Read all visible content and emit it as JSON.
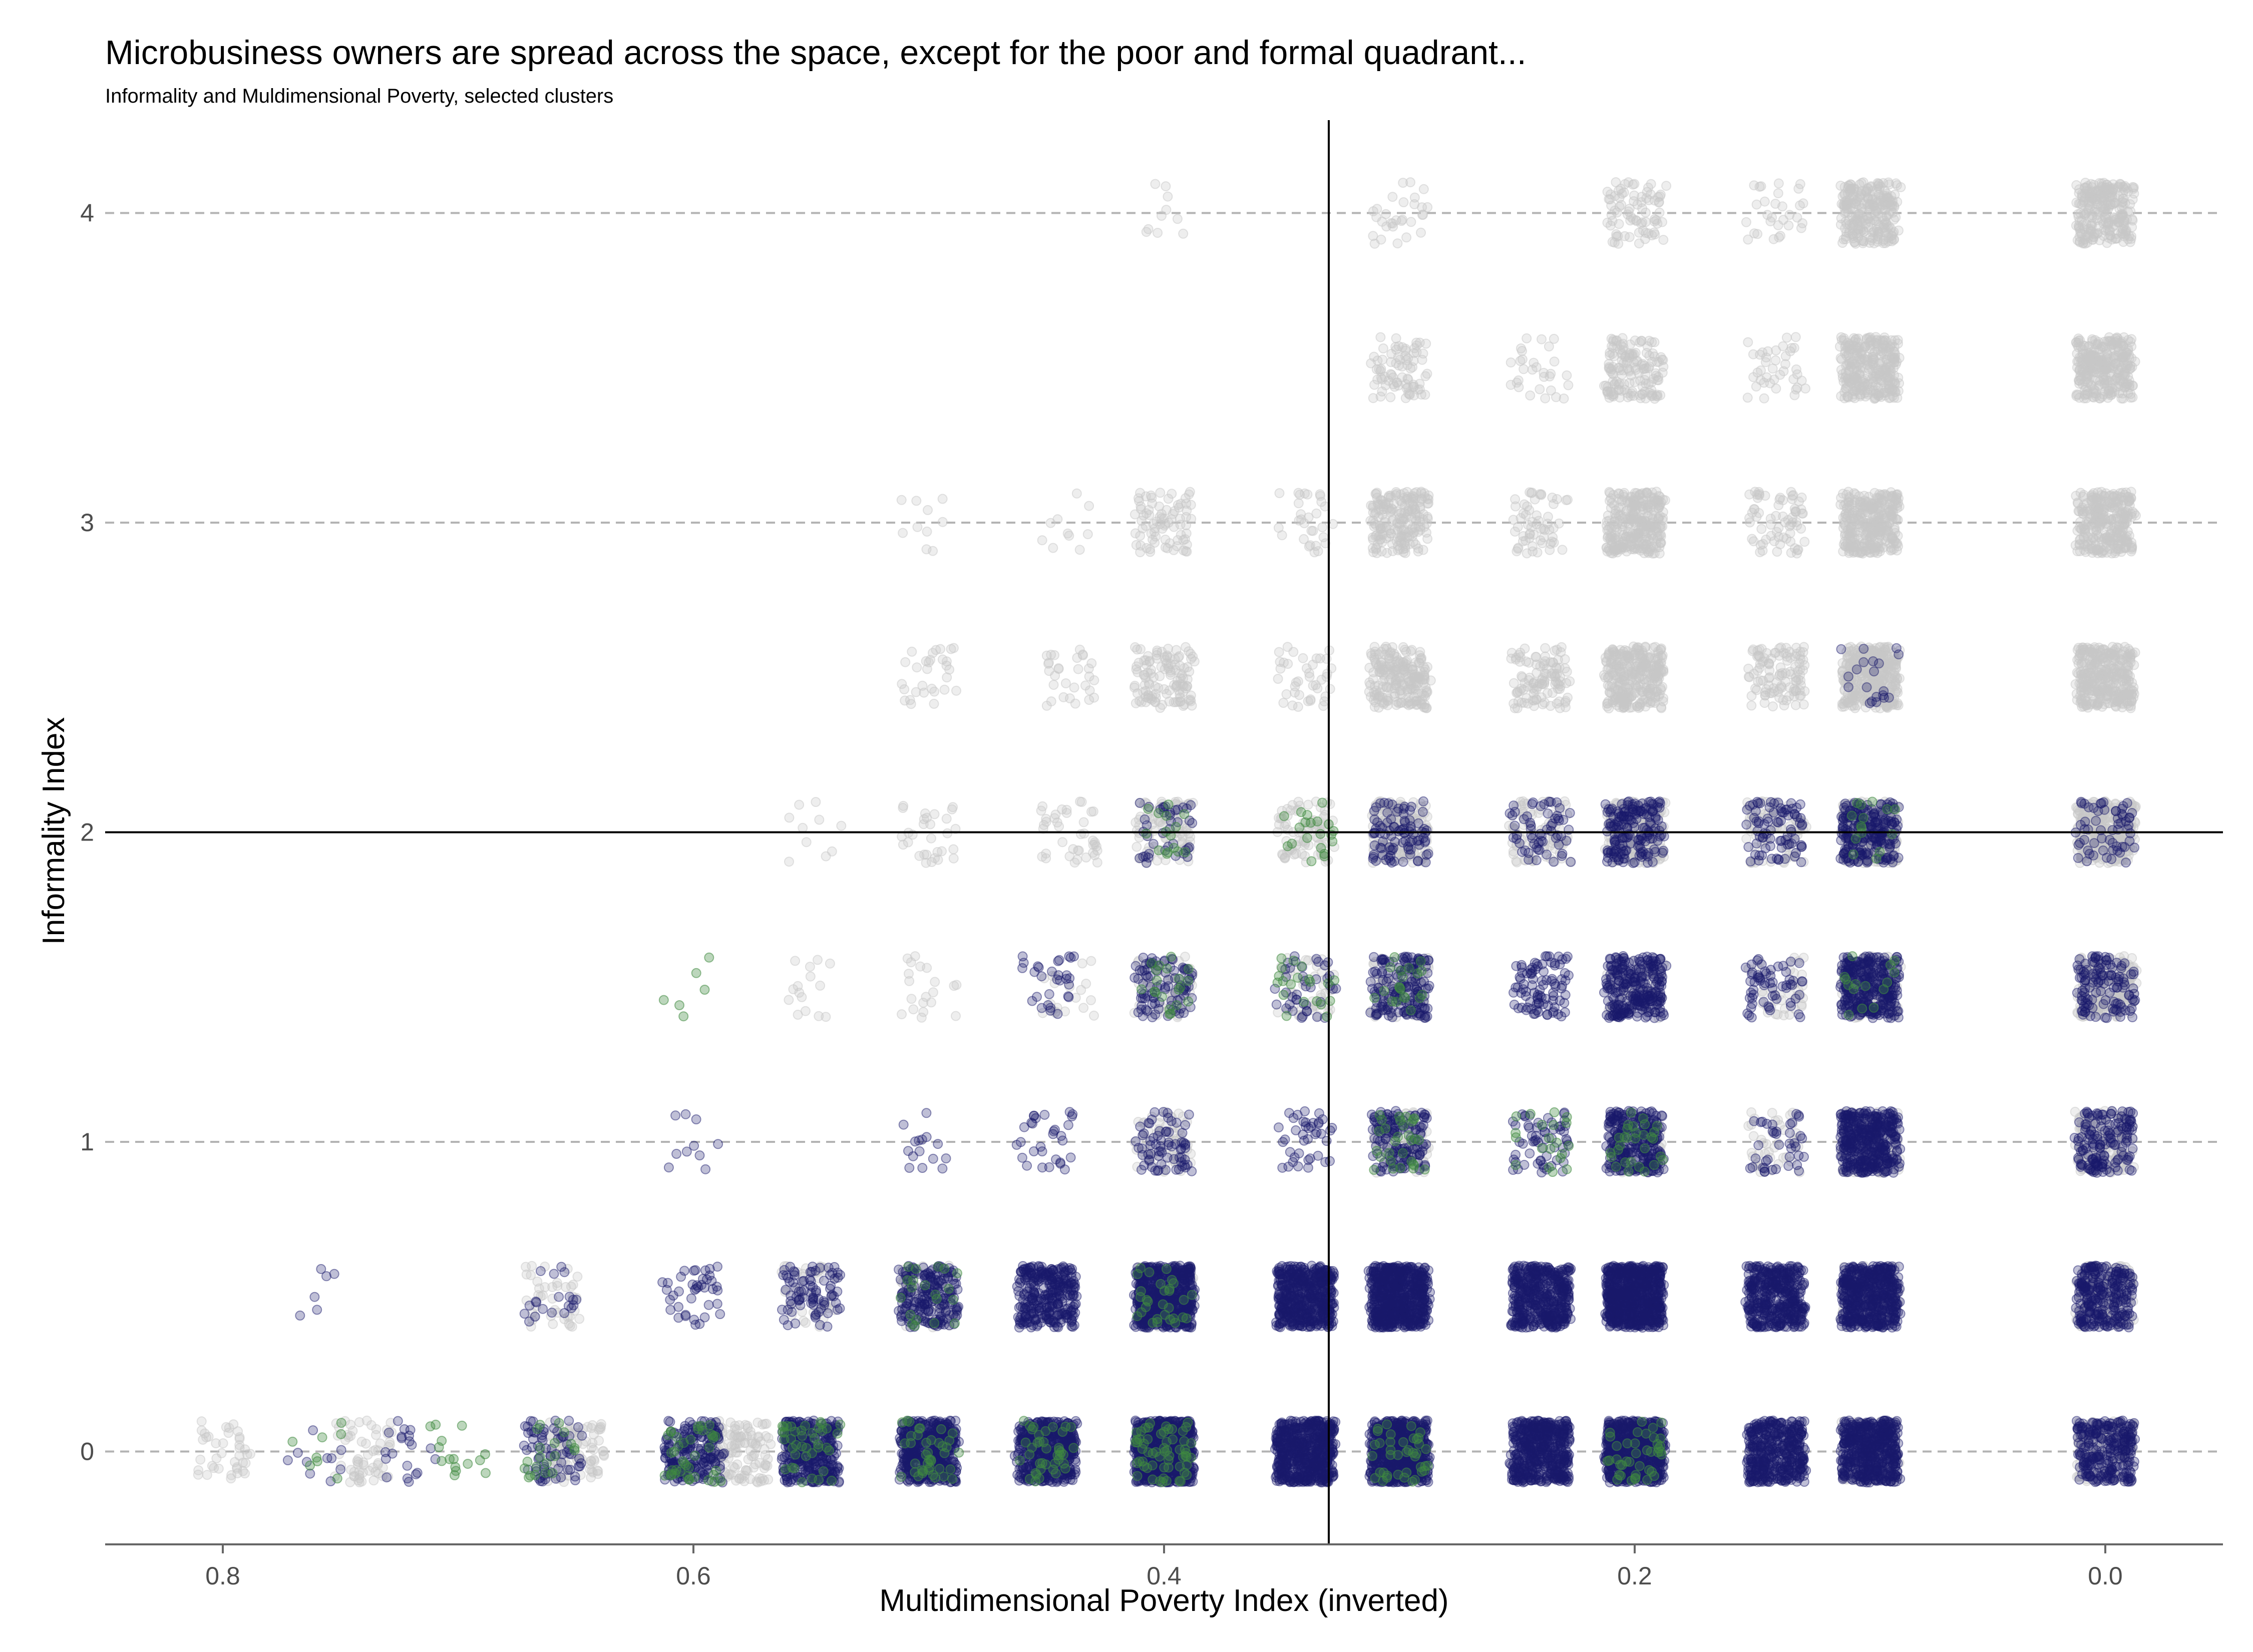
{
  "chart_data": {
    "type": "scatter",
    "title": "Microbusiness owners are spread across the space, except for the poor and formal quadrant...",
    "subtitle": "Informality and Muldimensional Poverty, selected clusters",
    "xlabel": "Multidimensional Poverty Index (inverted)",
    "ylabel": "Informality Index",
    "x_reversed": true,
    "xlim": [
      0.85,
      -0.05
    ],
    "ylim": [
      -0.3,
      4.3
    ],
    "x_ticks": [
      0.8,
      0.6,
      0.4,
      0.2,
      0.0
    ],
    "x_tick_labels": [
      "0.8",
      "0.6",
      "0.4",
      "0.2",
      "0.0"
    ],
    "y_ticks": [
      0,
      1,
      2,
      3,
      4
    ],
    "y_tick_labels": [
      "0",
      "1",
      "2",
      "3",
      "4"
    ],
    "grid": "horizontal dashed",
    "reference_lines": {
      "x": 0.33,
      "y": 2
    },
    "jitter": {
      "x": 0.012,
      "y": 0.1
    },
    "colors": {
      "background_points": "#c8c8c8",
      "dark_points": "#1a1a6b",
      "green_points": "#3f8a3f"
    },
    "series": [
      {
        "color_key": "background_points",
        "clusters": [
          {
            "x": 0.0,
            "y": 0,
            "n": 120
          },
          {
            "x": 0.0,
            "y": 0.5,
            "n": 130
          },
          {
            "x": 0.0,
            "y": 1,
            "n": 160
          },
          {
            "x": 0.0,
            "y": 1.5,
            "n": 200
          },
          {
            "x": 0.0,
            "y": 2,
            "n": 280
          },
          {
            "x": 0.0,
            "y": 2.5,
            "n": 340
          },
          {
            "x": 0.0,
            "y": 3,
            "n": 300
          },
          {
            "x": 0.0,
            "y": 3.5,
            "n": 300
          },
          {
            "x": 0.0,
            "y": 4,
            "n": 260
          },
          {
            "x": 0.1,
            "y": 0,
            "n": 100
          },
          {
            "x": 0.1,
            "y": 0.5,
            "n": 100
          },
          {
            "x": 0.1,
            "y": 1,
            "n": 120
          },
          {
            "x": 0.1,
            "y": 1.5,
            "n": 140
          },
          {
            "x": 0.1,
            "y": 2,
            "n": 260
          },
          {
            "x": 0.1,
            "y": 2.5,
            "n": 360
          },
          {
            "x": 0.1,
            "y": 3,
            "n": 320
          },
          {
            "x": 0.1,
            "y": 3.5,
            "n": 300
          },
          {
            "x": 0.1,
            "y": 4,
            "n": 260
          },
          {
            "x": 0.14,
            "y": 1,
            "n": 40
          },
          {
            "x": 0.14,
            "y": 1.5,
            "n": 40
          },
          {
            "x": 0.14,
            "y": 2,
            "n": 80
          },
          {
            "x": 0.14,
            "y": 2.5,
            "n": 110
          },
          {
            "x": 0.14,
            "y": 3,
            "n": 70
          },
          {
            "x": 0.14,
            "y": 3.5,
            "n": 40
          },
          {
            "x": 0.14,
            "y": 4,
            "n": 30
          },
          {
            "x": 0.2,
            "y": 1,
            "n": 60
          },
          {
            "x": 0.2,
            "y": 1.5,
            "n": 80
          },
          {
            "x": 0.2,
            "y": 2,
            "n": 220
          },
          {
            "x": 0.2,
            "y": 2.5,
            "n": 300
          },
          {
            "x": 0.2,
            "y": 3,
            "n": 300
          },
          {
            "x": 0.2,
            "y": 3.5,
            "n": 150
          },
          {
            "x": 0.2,
            "y": 4,
            "n": 80
          },
          {
            "x": 0.24,
            "y": 2,
            "n": 90
          },
          {
            "x": 0.24,
            "y": 2.5,
            "n": 110
          },
          {
            "x": 0.24,
            "y": 3,
            "n": 60
          },
          {
            "x": 0.24,
            "y": 3.5,
            "n": 30
          },
          {
            "x": 0.3,
            "y": 1,
            "n": 70
          },
          {
            "x": 0.3,
            "y": 1.5,
            "n": 90
          },
          {
            "x": 0.3,
            "y": 2,
            "n": 180
          },
          {
            "x": 0.3,
            "y": 2.5,
            "n": 220
          },
          {
            "x": 0.3,
            "y": 3,
            "n": 200
          },
          {
            "x": 0.3,
            "y": 3.5,
            "n": 80
          },
          {
            "x": 0.3,
            "y": 4,
            "n": 30
          },
          {
            "x": 0.34,
            "y": 1.5,
            "n": 50
          },
          {
            "x": 0.34,
            "y": 2,
            "n": 80
          },
          {
            "x": 0.34,
            "y": 2.5,
            "n": 40
          },
          {
            "x": 0.34,
            "y": 3,
            "n": 30
          },
          {
            "x": 0.4,
            "y": 0.5,
            "n": 60
          },
          {
            "x": 0.4,
            "y": 1,
            "n": 60
          },
          {
            "x": 0.4,
            "y": 1.5,
            "n": 60
          },
          {
            "x": 0.4,
            "y": 2,
            "n": 100
          },
          {
            "x": 0.4,
            "y": 2.5,
            "n": 120
          },
          {
            "x": 0.4,
            "y": 3,
            "n": 80
          },
          {
            "x": 0.4,
            "y": 4,
            "n": 10
          },
          {
            "x": 0.44,
            "y": 1.5,
            "n": 20
          },
          {
            "x": 0.44,
            "y": 2,
            "n": 40
          },
          {
            "x": 0.44,
            "y": 2.5,
            "n": 30
          },
          {
            "x": 0.44,
            "y": 3,
            "n": 10
          },
          {
            "x": 0.5,
            "y": 0.5,
            "n": 60
          },
          {
            "x": 0.5,
            "y": 1.5,
            "n": 20
          },
          {
            "x": 0.5,
            "y": 2,
            "n": 30
          },
          {
            "x": 0.5,
            "y": 2.5,
            "n": 30
          },
          {
            "x": 0.5,
            "y": 3,
            "n": 10
          },
          {
            "x": 0.55,
            "y": 0.5,
            "n": 40
          },
          {
            "x": 0.55,
            "y": 1.5,
            "n": 15
          },
          {
            "x": 0.55,
            "y": 2,
            "n": 10
          },
          {
            "x": 0.58,
            "y": 0,
            "n": 120
          },
          {
            "x": 0.66,
            "y": 0.5,
            "n": 40
          },
          {
            "x": 0.65,
            "y": 0,
            "n": 90
          },
          {
            "x": 0.74,
            "y": 0,
            "n": 60
          },
          {
            "x": 0.8,
            "y": 0,
            "n": 40
          }
        ]
      },
      {
        "color_key": "dark_points",
        "clusters": [
          {
            "x": 0.0,
            "y": 0,
            "n": 260
          },
          {
            "x": 0.0,
            "y": 0.5,
            "n": 260
          },
          {
            "x": 0.0,
            "y": 1,
            "n": 150
          },
          {
            "x": 0.0,
            "y": 1.5,
            "n": 120
          },
          {
            "x": 0.0,
            "y": 2,
            "n": 60
          },
          {
            "x": 0.1,
            "y": 0,
            "n": 500
          },
          {
            "x": 0.1,
            "y": 0.5,
            "n": 500
          },
          {
            "x": 0.1,
            "y": 1,
            "n": 400
          },
          {
            "x": 0.1,
            "y": 1.5,
            "n": 320
          },
          {
            "x": 0.1,
            "y": 2,
            "n": 220
          },
          {
            "x": 0.1,
            "y": 2.5,
            "n": 20
          },
          {
            "x": 0.14,
            "y": 0,
            "n": 400
          },
          {
            "x": 0.14,
            "y": 0.5,
            "n": 400
          },
          {
            "x": 0.14,
            "y": 1,
            "n": 40
          },
          {
            "x": 0.14,
            "y": 1.5,
            "n": 60
          },
          {
            "x": 0.14,
            "y": 2,
            "n": 80
          },
          {
            "x": 0.2,
            "y": 0,
            "n": 700
          },
          {
            "x": 0.2,
            "y": 0.5,
            "n": 700
          },
          {
            "x": 0.2,
            "y": 1,
            "n": 280
          },
          {
            "x": 0.2,
            "y": 1.5,
            "n": 260
          },
          {
            "x": 0.2,
            "y": 2,
            "n": 170
          },
          {
            "x": 0.24,
            "y": 0,
            "n": 500
          },
          {
            "x": 0.24,
            "y": 0.5,
            "n": 450
          },
          {
            "x": 0.24,
            "y": 1,
            "n": 60
          },
          {
            "x": 0.24,
            "y": 1.5,
            "n": 90
          },
          {
            "x": 0.24,
            "y": 2,
            "n": 60
          },
          {
            "x": 0.3,
            "y": 0,
            "n": 700
          },
          {
            "x": 0.3,
            "y": 0.5,
            "n": 650
          },
          {
            "x": 0.3,
            "y": 1,
            "n": 140
          },
          {
            "x": 0.3,
            "y": 1.5,
            "n": 160
          },
          {
            "x": 0.3,
            "y": 2,
            "n": 90
          },
          {
            "x": 0.34,
            "y": 0,
            "n": 600
          },
          {
            "x": 0.34,
            "y": 0.5,
            "n": 500
          },
          {
            "x": 0.34,
            "y": 1,
            "n": 40
          },
          {
            "x": 0.34,
            "y": 1.5,
            "n": 40
          },
          {
            "x": 0.4,
            "y": 0,
            "n": 800
          },
          {
            "x": 0.4,
            "y": 0.5,
            "n": 600
          },
          {
            "x": 0.4,
            "y": 1,
            "n": 70
          },
          {
            "x": 0.4,
            "y": 1.5,
            "n": 90
          },
          {
            "x": 0.4,
            "y": 2,
            "n": 40
          },
          {
            "x": 0.45,
            "y": 0,
            "n": 500
          },
          {
            "x": 0.45,
            "y": 0.5,
            "n": 300
          },
          {
            "x": 0.45,
            "y": 1,
            "n": 30
          },
          {
            "x": 0.45,
            "y": 1.5,
            "n": 30
          },
          {
            "x": 0.5,
            "y": 0,
            "n": 500
          },
          {
            "x": 0.5,
            "y": 0.5,
            "n": 200
          },
          {
            "x": 0.5,
            "y": 1,
            "n": 15
          },
          {
            "x": 0.55,
            "y": 0,
            "n": 350
          },
          {
            "x": 0.55,
            "y": 0.5,
            "n": 80
          },
          {
            "x": 0.6,
            "y": 0,
            "n": 200
          },
          {
            "x": 0.6,
            "y": 0.5,
            "n": 40
          },
          {
            "x": 0.6,
            "y": 1,
            "n": 10
          },
          {
            "x": 0.66,
            "y": 0,
            "n": 70
          },
          {
            "x": 0.66,
            "y": 0.5,
            "n": 20
          },
          {
            "x": 0.72,
            "y": 0,
            "n": 20
          },
          {
            "x": 0.76,
            "y": 0,
            "n": 10
          },
          {
            "x": 0.76,
            "y": 0.5,
            "n": 6
          }
        ]
      },
      {
        "color_key": "green_points",
        "clusters": [
          {
            "x": 0.1,
            "y": 1.5,
            "n": 15
          },
          {
            "x": 0.1,
            "y": 2,
            "n": 15
          },
          {
            "x": 0.2,
            "y": 0,
            "n": 40
          },
          {
            "x": 0.2,
            "y": 1,
            "n": 30
          },
          {
            "x": 0.24,
            "y": 1,
            "n": 20
          },
          {
            "x": 0.3,
            "y": 0,
            "n": 40
          },
          {
            "x": 0.3,
            "y": 1,
            "n": 30
          },
          {
            "x": 0.3,
            "y": 1.5,
            "n": 20
          },
          {
            "x": 0.34,
            "y": 2,
            "n": 20
          },
          {
            "x": 0.34,
            "y": 1.5,
            "n": 20
          },
          {
            "x": 0.4,
            "y": 0,
            "n": 60
          },
          {
            "x": 0.4,
            "y": 0.5,
            "n": 30
          },
          {
            "x": 0.4,
            "y": 1.5,
            "n": 20
          },
          {
            "x": 0.4,
            "y": 2,
            "n": 15
          },
          {
            "x": 0.45,
            "y": 0,
            "n": 40
          },
          {
            "x": 0.5,
            "y": 0,
            "n": 40
          },
          {
            "x": 0.5,
            "y": 0.5,
            "n": 20
          },
          {
            "x": 0.55,
            "y": 0,
            "n": 40
          },
          {
            "x": 0.6,
            "y": 0,
            "n": 40
          },
          {
            "x": 0.6,
            "y": 1.5,
            "n": 6
          },
          {
            "x": 0.66,
            "y": 0,
            "n": 20
          },
          {
            "x": 0.7,
            "y": 0,
            "n": 15
          },
          {
            "x": 0.76,
            "y": 0,
            "n": 8
          }
        ]
      }
    ]
  }
}
